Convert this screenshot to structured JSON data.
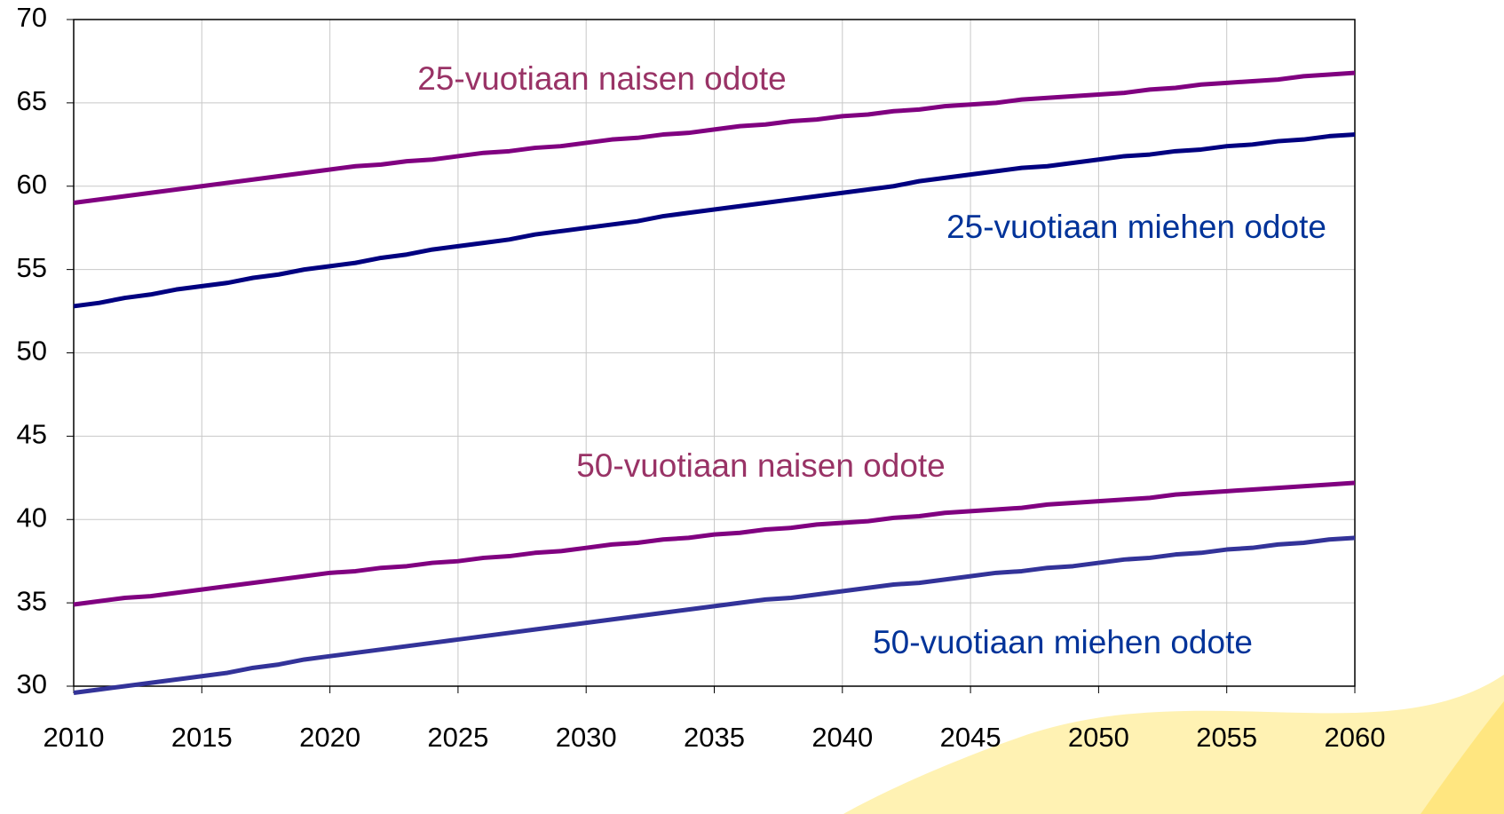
{
  "chart_data": {
    "type": "line",
    "x": [
      2010,
      2011,
      2012,
      2013,
      2014,
      2015,
      2016,
      2017,
      2018,
      2019,
      2020,
      2021,
      2022,
      2023,
      2024,
      2025,
      2026,
      2027,
      2028,
      2029,
      2030,
      2031,
      2032,
      2033,
      2034,
      2035,
      2036,
      2037,
      2038,
      2039,
      2040,
      2041,
      2042,
      2043,
      2044,
      2045,
      2046,
      2047,
      2048,
      2049,
      2050,
      2051,
      2052,
      2053,
      2054,
      2055,
      2056,
      2057,
      2058,
      2059,
      2060
    ],
    "series": [
      {
        "name": "25-vuotiaan naisen odote",
        "color": "#800080",
        "label_color": "#993366",
        "values": [
          59.0,
          59.2,
          59.4,
          59.6,
          59.8,
          60.0,
          60.2,
          60.4,
          60.6,
          60.8,
          61.0,
          61.2,
          61.3,
          61.5,
          61.6,
          61.8,
          62.0,
          62.1,
          62.3,
          62.4,
          62.6,
          62.8,
          62.9,
          63.1,
          63.2,
          63.4,
          63.6,
          63.7,
          63.9,
          64.0,
          64.2,
          64.3,
          64.5,
          64.6,
          64.8,
          64.9,
          65.0,
          65.2,
          65.3,
          65.4,
          65.5,
          65.6,
          65.8,
          65.9,
          66.1,
          66.2,
          66.3,
          66.4,
          66.6,
          66.7,
          66.8
        ]
      },
      {
        "name": "25-vuotiaan miehen odote",
        "color": "#000080",
        "label_color": "#003399",
        "values": [
          52.8,
          53.0,
          53.3,
          53.5,
          53.8,
          54.0,
          54.2,
          54.5,
          54.7,
          55.0,
          55.2,
          55.4,
          55.7,
          55.9,
          56.2,
          56.4,
          56.6,
          56.8,
          57.1,
          57.3,
          57.5,
          57.7,
          57.9,
          58.2,
          58.4,
          58.6,
          58.8,
          59.0,
          59.2,
          59.4,
          59.6,
          59.8,
          60.0,
          60.3,
          60.5,
          60.7,
          60.9,
          61.1,
          61.2,
          61.4,
          61.6,
          61.8,
          61.9,
          62.1,
          62.2,
          62.4,
          62.5,
          62.7,
          62.8,
          63.0,
          63.1
        ]
      },
      {
        "name": "50-vuotiaan naisen odote",
        "color": "#800080",
        "label_color": "#993366",
        "values": [
          34.9,
          35.1,
          35.3,
          35.4,
          35.6,
          35.8,
          36.0,
          36.2,
          36.4,
          36.6,
          36.8,
          36.9,
          37.1,
          37.2,
          37.4,
          37.5,
          37.7,
          37.8,
          38.0,
          38.1,
          38.3,
          38.5,
          38.6,
          38.8,
          38.9,
          39.1,
          39.2,
          39.4,
          39.5,
          39.7,
          39.8,
          39.9,
          40.1,
          40.2,
          40.4,
          40.5,
          40.6,
          40.7,
          40.9,
          41.0,
          41.1,
          41.2,
          41.3,
          41.5,
          41.6,
          41.7,
          41.8,
          41.9,
          42.0,
          42.1,
          42.2
        ]
      },
      {
        "name": "50-vuotiaan miehen odote",
        "color": "#333399",
        "label_color": "#003399",
        "values": [
          29.6,
          29.8,
          30.0,
          30.2,
          30.4,
          30.6,
          30.8,
          31.1,
          31.3,
          31.6,
          31.8,
          32.0,
          32.2,
          32.4,
          32.6,
          32.8,
          33.0,
          33.2,
          33.4,
          33.6,
          33.8,
          34.0,
          34.2,
          34.4,
          34.6,
          34.8,
          35.0,
          35.2,
          35.3,
          35.5,
          35.7,
          35.9,
          36.1,
          36.2,
          36.4,
          36.6,
          36.8,
          36.9,
          37.1,
          37.2,
          37.4,
          37.6,
          37.7,
          37.9,
          38.0,
          38.2,
          38.3,
          38.5,
          38.6,
          38.8,
          38.9
        ]
      }
    ],
    "xlim": [
      2010,
      2060
    ],
    "xticks": [
      2010,
      2015,
      2020,
      2025,
      2030,
      2035,
      2040,
      2045,
      2050,
      2055,
      2060
    ],
    "ylim": [
      30,
      70
    ],
    "yticks": [
      30,
      35,
      40,
      45,
      50,
      55,
      60,
      65,
      70
    ],
    "grid": true
  }
}
